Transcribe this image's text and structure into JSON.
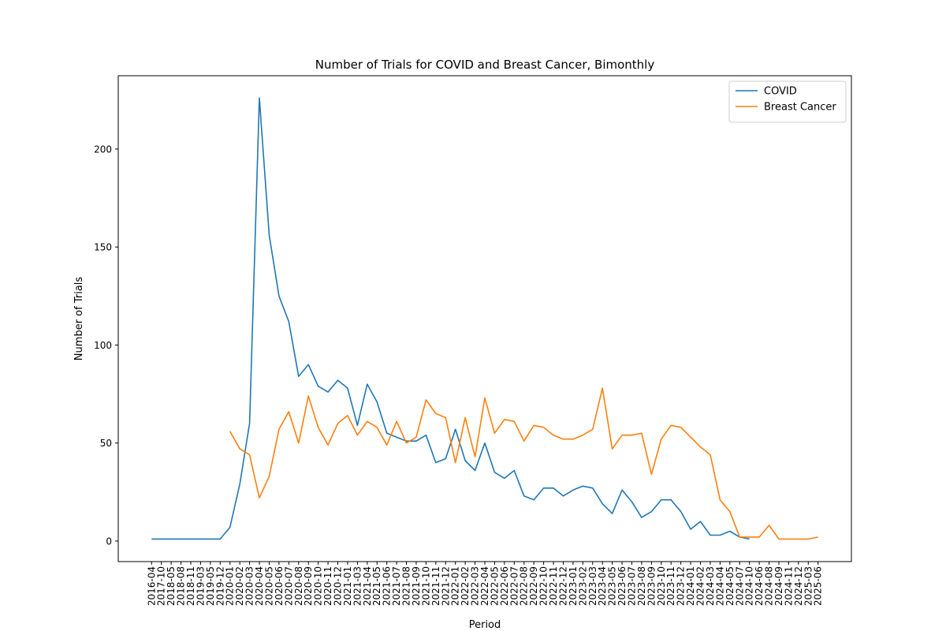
{
  "chart_data": {
    "type": "line",
    "title": "Number of Trials for COVID and Breast Cancer, Bimonthly",
    "x_label": "Period",
    "y_label": "Number of Trials",
    "categories": [
      "2016-04",
      "2017-10",
      "2018-05",
      "2018-08",
      "2018-11",
      "2019-03",
      "2019-05",
      "2019-12",
      "2020-01",
      "2020-02",
      "2020-03",
      "2020-04",
      "2020-05",
      "2020-06",
      "2020-07",
      "2020-08",
      "2020-09",
      "2020-10",
      "2020-11",
      "2020-12",
      "2021-01",
      "2021-03",
      "2021-04",
      "2021-05",
      "2021-06",
      "2021-07",
      "2021-08",
      "2021-09",
      "2021-10",
      "2021-11",
      "2021-12",
      "2022-01",
      "2022-02",
      "2022-03",
      "2022-04",
      "2022-05",
      "2022-06",
      "2022-07",
      "2022-08",
      "2022-09",
      "2022-10",
      "2022-11",
      "2022-12",
      "2023-01",
      "2023-02",
      "2023-03",
      "2023-04",
      "2023-05",
      "2023-06",
      "2023-07",
      "2023-08",
      "2023-09",
      "2023-10",
      "2023-11",
      "2023-12",
      "2024-01",
      "2024-02",
      "2024-03",
      "2024-04",
      "2024-05",
      "2024-07",
      "2024-10",
      "2024-06",
      "2024-08",
      "2024-09",
      "2024-11",
      "2024-12",
      "2025-03",
      "2025-06"
    ],
    "series": [
      {
        "name": "COVID",
        "color": "#1f77b4",
        "values": [
          1,
          1,
          1,
          1,
          1,
          1,
          1,
          1,
          7,
          29,
          60,
          226,
          156,
          125,
          112,
          84,
          90,
          79,
          76,
          82,
          78,
          59,
          80,
          71,
          55,
          53,
          51,
          51,
          54,
          40,
          42,
          57,
          41,
          36,
          50,
          35,
          32,
          36,
          23,
          21,
          27,
          27,
          23,
          26,
          28,
          27,
          19,
          14,
          26,
          20,
          12,
          15,
          21,
          21,
          15,
          6,
          10,
          3,
          3,
          5,
          2,
          1,
          null,
          null,
          null,
          null,
          null,
          null,
          null
        ]
      },
      {
        "name": "Breast Cancer",
        "color": "#ff7f0e",
        "values": [
          null,
          null,
          null,
          null,
          null,
          null,
          null,
          null,
          56,
          47,
          44,
          22,
          33,
          57,
          66,
          50,
          74,
          58,
          49,
          60,
          64,
          54,
          61,
          58,
          49,
          61,
          50,
          53,
          72,
          65,
          63,
          40,
          63,
          43,
          73,
          55,
          62,
          61,
          51,
          59,
          58,
          54,
          52,
          52,
          54,
          57,
          78,
          47,
          54,
          54,
          55,
          34,
          52,
          59,
          58,
          53,
          48,
          44,
          21,
          15,
          2,
          2,
          2,
          8,
          1,
          1,
          1,
          1,
          2
        ]
      }
    ],
    "ylim": [
      -10.5,
      237.4
    ],
    "yticks": [
      0,
      50,
      100,
      150,
      200
    ],
    "legend": "upper right"
  }
}
